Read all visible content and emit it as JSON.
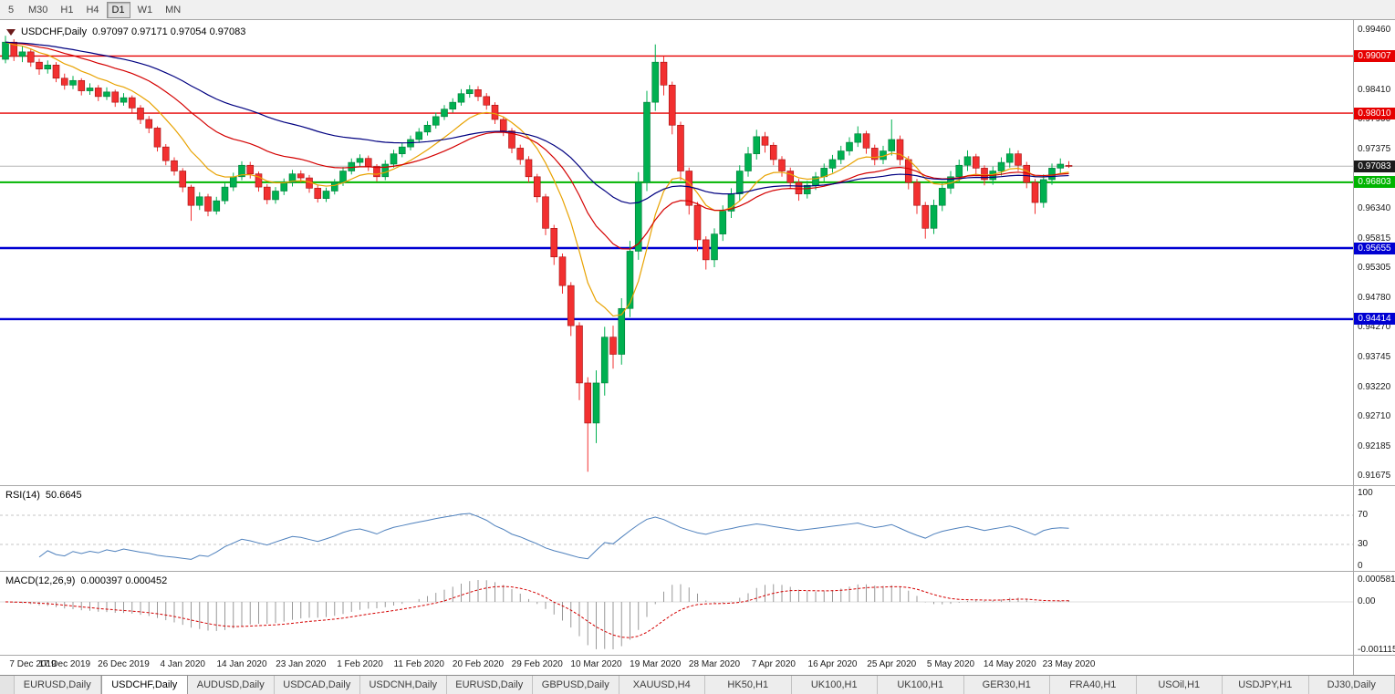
{
  "toolbar": {
    "timeframes": [
      {
        "label": "5",
        "active": false
      },
      {
        "label": "M30",
        "active": false
      },
      {
        "label": "H1",
        "active": false
      },
      {
        "label": "H4",
        "active": false
      },
      {
        "label": "D1",
        "active": true
      },
      {
        "label": "W1",
        "active": false
      },
      {
        "label": "MN",
        "active": false
      }
    ]
  },
  "chart_header": {
    "symbol": "USDCHF,Daily",
    "ohlc": "0.97097 0.97171 0.97054 0.97083"
  },
  "price_axis_labels": [
    "0.99460",
    "0.98410",
    "0.97900",
    "0.97375",
    "0.96340",
    "0.95815",
    "0.95305",
    "0.94780",
    "0.94270",
    "0.93745",
    "0.93220",
    "0.92710",
    "0.92185",
    "0.91675"
  ],
  "levels": {
    "lines": [
      {
        "price": 0.99007,
        "label": "0.99007",
        "color": "#e60000",
        "width": 1.4
      },
      {
        "price": 0.9801,
        "label": "0.98010",
        "color": "#e60000",
        "width": 1.4
      },
      {
        "price": 0.96803,
        "label": "0.96803",
        "color": "#00b400",
        "width": 2
      },
      {
        "price": 0.95655,
        "label": "0.95655",
        "color": "#0000d2",
        "width": 2.4
      },
      {
        "price": 0.94414,
        "label": "0.94414",
        "color": "#0000d2",
        "width": 2.4
      }
    ],
    "current": {
      "price": 0.97083,
      "label": "0.97083",
      "color": "#1b1b1b",
      "line_color": "#b6b6b6"
    }
  },
  "rsi_panel": {
    "label": "RSI(14)",
    "value": "50.6645",
    "axis_labels": [
      "100",
      "70",
      "30",
      "0"
    ],
    "level_lines": [
      70,
      30
    ],
    "line_color": "#4f81bd"
  },
  "macd_panel": {
    "label": "MACD(12,26,9)",
    "value": "0.000397 0.000452",
    "axis_labels": [
      "0.0005818",
      "0.00",
      "-0.0011151"
    ],
    "histogram_color": "#989898",
    "signal_color": "#d40000"
  },
  "tabbar": {
    "tabs": [
      {
        "label": "EURUSD,Daily",
        "active": false
      },
      {
        "label": "USDCHF,Daily",
        "active": true
      },
      {
        "label": "AUDUSD,Daily",
        "active": false
      },
      {
        "label": "USDCAD,Daily",
        "active": false
      },
      {
        "label": "USDCNH,Daily",
        "active": false
      },
      {
        "label": "EURUSD,Daily",
        "active": false
      },
      {
        "label": "GBPUSD,Daily",
        "active": false
      },
      {
        "label": "XAUUSD,H4",
        "active": false
      },
      {
        "label": "HK50,H1",
        "active": false
      },
      {
        "label": "UK100,H1",
        "active": false
      },
      {
        "label": "UK100,H1",
        "active": false
      },
      {
        "label": "GER30,H1",
        "active": false
      },
      {
        "label": "FRA40,H1",
        "active": false
      },
      {
        "label": "USOil,H1",
        "active": false
      },
      {
        "label": "USDJPY,H1",
        "active": false
      },
      {
        "label": "DJ30,Daily",
        "active": false
      }
    ]
  },
  "chart_data": {
    "type": "candlestick",
    "title": "USDCHF,Daily",
    "timeframe": "D1",
    "last_bar_ohlc": {
      "open": 0.97097,
      "high": 0.97171,
      "low": 0.97054,
      "close": 0.97083
    },
    "y_axis_range": [
      0.91516,
      0.99635
    ],
    "bars_per_x_tick": 7,
    "x_tick_labels": [
      "7 Dec 2019",
      "17 Dec 2019",
      "26 Dec 2019",
      "4 Jan 2020",
      "14 Jan 2020",
      "23 Jan 2020",
      "1 Feb 2020",
      "11 Feb 2020",
      "20 Feb 2020",
      "29 Feb 2020",
      "10 Mar 2020",
      "19 Mar 2020",
      "28 Mar 2020",
      "7 Apr 2020",
      "16 Apr 2020",
      "25 Apr 2020",
      "5 May 2020",
      "14 May 2020",
      "23 May 2020"
    ],
    "colors": {
      "up": "#00b050",
      "up_border": "#007a38",
      "down": "#f23030",
      "down_border": "#a01010"
    },
    "moving_averages": [
      {
        "period": 10,
        "color": "#e8a200"
      },
      {
        "period": 25,
        "color": "#d40000"
      },
      {
        "period": 50,
        "color": "#000080"
      }
    ],
    "horizontal_levels": [
      {
        "price": 0.99007,
        "color": "#e60000"
      },
      {
        "price": 0.9801,
        "color": "#e60000"
      },
      {
        "price": 0.96803,
        "color": "#00b400"
      },
      {
        "price": 0.95655,
        "color": "#0000d2"
      },
      {
        "price": 0.94414,
        "color": "#0000d2"
      }
    ],
    "indicators": [
      {
        "name": "RSI",
        "params": "14",
        "display_value": 50.6645
      },
      {
        "name": "MACD",
        "params": "12,26,9",
        "display_values": [
          0.000397,
          0.000452
        ]
      }
    ],
    "candles": [
      [
        0.9895,
        0.9936,
        0.9888,
        0.9925
      ],
      [
        0.9925,
        0.993,
        0.9892,
        0.99
      ],
      [
        0.99,
        0.9918,
        0.989,
        0.9908
      ],
      [
        0.9908,
        0.9914,
        0.9882,
        0.989
      ],
      [
        0.989,
        0.9896,
        0.9868,
        0.9878
      ],
      [
        0.9878,
        0.9893,
        0.987,
        0.9885
      ],
      [
        0.9885,
        0.989,
        0.9855,
        0.9862
      ],
      [
        0.9862,
        0.987,
        0.9842,
        0.985
      ],
      [
        0.985,
        0.9866,
        0.9843,
        0.9858
      ],
      [
        0.9858,
        0.9862,
        0.9832,
        0.984
      ],
      [
        0.984,
        0.9853,
        0.9833,
        0.9845
      ],
      [
        0.9845,
        0.985,
        0.9822,
        0.983
      ],
      [
        0.983,
        0.9846,
        0.9824,
        0.9838
      ],
      [
        0.9838,
        0.9842,
        0.9812,
        0.982
      ],
      [
        0.982,
        0.9836,
        0.9814,
        0.9828
      ],
      [
        0.9828,
        0.9832,
        0.9802,
        0.981
      ],
      [
        0.981,
        0.9815,
        0.9782,
        0.979
      ],
      [
        0.979,
        0.9796,
        0.9766,
        0.9775
      ],
      [
        0.9775,
        0.9778,
        0.9734,
        0.9742
      ],
      [
        0.9742,
        0.9747,
        0.971,
        0.9718
      ],
      [
        0.9718,
        0.9724,
        0.9692,
        0.97
      ],
      [
        0.97,
        0.9705,
        0.9663,
        0.9672
      ],
      [
        0.9672,
        0.9676,
        0.9613,
        0.964
      ],
      [
        0.964,
        0.9663,
        0.9632,
        0.9655
      ],
      [
        0.9655,
        0.966,
        0.9621,
        0.963
      ],
      [
        0.963,
        0.9655,
        0.9624,
        0.9648
      ],
      [
        0.9648,
        0.9679,
        0.9642,
        0.9672
      ],
      [
        0.9672,
        0.9697,
        0.9665,
        0.969
      ],
      [
        0.969,
        0.9717,
        0.9684,
        0.971
      ],
      [
        0.971,
        0.9716,
        0.9687,
        0.9695
      ],
      [
        0.9695,
        0.9699,
        0.9664,
        0.9672
      ],
      [
        0.9672,
        0.9677,
        0.9642,
        0.965
      ],
      [
        0.965,
        0.9672,
        0.9643,
        0.9665
      ],
      [
        0.9665,
        0.9687,
        0.9658,
        0.968
      ],
      [
        0.968,
        0.9702,
        0.9673,
        0.9695
      ],
      [
        0.9695,
        0.9701,
        0.968,
        0.9688
      ],
      [
        0.9688,
        0.9693,
        0.9662,
        0.967
      ],
      [
        0.967,
        0.9675,
        0.9645,
        0.9652
      ],
      [
        0.9652,
        0.9671,
        0.9646,
        0.9665
      ],
      [
        0.9665,
        0.9686,
        0.9659,
        0.968
      ],
      [
        0.968,
        0.9707,
        0.9674,
        0.97
      ],
      [
        0.97,
        0.9722,
        0.9694,
        0.9715
      ],
      [
        0.9715,
        0.9729,
        0.9708,
        0.9722
      ],
      [
        0.9722,
        0.9727,
        0.97,
        0.9708
      ],
      [
        0.9708,
        0.9712,
        0.9682,
        0.969
      ],
      [
        0.969,
        0.9719,
        0.9684,
        0.9712
      ],
      [
        0.9712,
        0.9737,
        0.9706,
        0.973
      ],
      [
        0.973,
        0.9749,
        0.9724,
        0.9742
      ],
      [
        0.9742,
        0.9762,
        0.9736,
        0.9755
      ],
      [
        0.9755,
        0.9775,
        0.9749,
        0.9768
      ],
      [
        0.9768,
        0.9787,
        0.9762,
        0.978
      ],
      [
        0.978,
        0.9802,
        0.9774,
        0.9795
      ],
      [
        0.9795,
        0.9815,
        0.9789,
        0.9808
      ],
      [
        0.9808,
        0.9827,
        0.9802,
        0.982
      ],
      [
        0.982,
        0.9843,
        0.9814,
        0.9835
      ],
      [
        0.9835,
        0.985,
        0.9828,
        0.9842
      ],
      [
        0.9842,
        0.9848,
        0.9822,
        0.983
      ],
      [
        0.983,
        0.9836,
        0.9807,
        0.9815
      ],
      [
        0.9815,
        0.982,
        0.9782,
        0.979
      ],
      [
        0.979,
        0.9795,
        0.9761,
        0.977
      ],
      [
        0.977,
        0.9775,
        0.9731,
        0.974
      ],
      [
        0.974,
        0.9746,
        0.9711,
        0.972
      ],
      [
        0.972,
        0.9726,
        0.968,
        0.969
      ],
      [
        0.969,
        0.9695,
        0.9645,
        0.9655
      ],
      [
        0.9655,
        0.966,
        0.9588,
        0.96
      ],
      [
        0.96,
        0.9606,
        0.9536,
        0.955
      ],
      [
        0.955,
        0.9556,
        0.9486,
        0.95
      ],
      [
        0.95,
        0.9506,
        0.9412,
        0.943
      ],
      [
        0.943,
        0.9436,
        0.93,
        0.933
      ],
      [
        0.933,
        0.934,
        0.9175,
        0.926
      ],
      [
        0.926,
        0.9352,
        0.9225,
        0.933
      ],
      [
        0.933,
        0.9428,
        0.9308,
        0.941
      ],
      [
        0.941,
        0.943,
        0.9355,
        0.938
      ],
      [
        0.938,
        0.9478,
        0.9362,
        0.946
      ],
      [
        0.946,
        0.9578,
        0.9445,
        0.956
      ],
      [
        0.956,
        0.9698,
        0.9545,
        0.968
      ],
      [
        0.968,
        0.984,
        0.9665,
        0.982
      ],
      [
        0.982,
        0.9921,
        0.9805,
        0.989
      ],
      [
        0.989,
        0.99,
        0.9832,
        0.985
      ],
      [
        0.985,
        0.9856,
        0.9764,
        0.978
      ],
      [
        0.978,
        0.9786,
        0.9684,
        0.97
      ],
      [
        0.97,
        0.9706,
        0.9624,
        0.964
      ],
      [
        0.964,
        0.9646,
        0.956,
        0.958
      ],
      [
        0.958,
        0.9586,
        0.9528,
        0.9545
      ],
      [
        0.9545,
        0.96,
        0.9532,
        0.959
      ],
      [
        0.959,
        0.964,
        0.9578,
        0.963
      ],
      [
        0.963,
        0.967,
        0.9618,
        0.966
      ],
      [
        0.966,
        0.971,
        0.9648,
        0.97
      ],
      [
        0.97,
        0.9742,
        0.969,
        0.973
      ],
      [
        0.973,
        0.9772,
        0.972,
        0.976
      ],
      [
        0.976,
        0.9768,
        0.9732,
        0.9745
      ],
      [
        0.9745,
        0.975,
        0.971,
        0.972
      ],
      [
        0.972,
        0.9726,
        0.969,
        0.97
      ],
      [
        0.97,
        0.9706,
        0.967,
        0.968
      ],
      [
        0.968,
        0.9686,
        0.9648,
        0.966
      ],
      [
        0.966,
        0.9683,
        0.9652,
        0.9675
      ],
      [
        0.9675,
        0.9698,
        0.9667,
        0.969
      ],
      [
        0.969,
        0.9713,
        0.9682,
        0.9705
      ],
      [
        0.9705,
        0.9728,
        0.9697,
        0.972
      ],
      [
        0.972,
        0.9744,
        0.9712,
        0.9735
      ],
      [
        0.9735,
        0.9759,
        0.9727,
        0.975
      ],
      [
        0.975,
        0.9778,
        0.9742,
        0.9765
      ],
      [
        0.9765,
        0.977,
        0.973,
        0.974
      ],
      [
        0.974,
        0.9746,
        0.971,
        0.972
      ],
      [
        0.972,
        0.9744,
        0.9712,
        0.9735
      ],
      [
        0.9735,
        0.979,
        0.9727,
        0.9755
      ],
      [
        0.9755,
        0.9762,
        0.971,
        0.972
      ],
      [
        0.972,
        0.9726,
        0.9668,
        0.968
      ],
      [
        0.968,
        0.9686,
        0.9625,
        0.964
      ],
      [
        0.964,
        0.9646,
        0.9582,
        0.96
      ],
      [
        0.96,
        0.965,
        0.959,
        0.964
      ],
      [
        0.964,
        0.968,
        0.963,
        0.967
      ],
      [
        0.967,
        0.97,
        0.966,
        0.969
      ],
      [
        0.969,
        0.972,
        0.968,
        0.971
      ],
      [
        0.971,
        0.9736,
        0.97,
        0.9725
      ],
      [
        0.9725,
        0.973,
        0.9695,
        0.9705
      ],
      [
        0.9705,
        0.971,
        0.9675,
        0.9685
      ],
      [
        0.9685,
        0.9708,
        0.9676,
        0.97
      ],
      [
        0.97,
        0.9724,
        0.9692,
        0.9715
      ],
      [
        0.9715,
        0.974,
        0.9706,
        0.973
      ],
      [
        0.973,
        0.9736,
        0.97,
        0.971
      ],
      [
        0.971,
        0.9716,
        0.967,
        0.968
      ],
      [
        0.968,
        0.9686,
        0.9625,
        0.9645
      ],
      [
        0.9645,
        0.9694,
        0.9636,
        0.9685
      ],
      [
        0.9685,
        0.9713,
        0.9676,
        0.9705
      ],
      [
        0.9705,
        0.9722,
        0.9696,
        0.9712
      ],
      [
        0.97097,
        0.97171,
        0.97054,
        0.97083
      ]
    ]
  }
}
